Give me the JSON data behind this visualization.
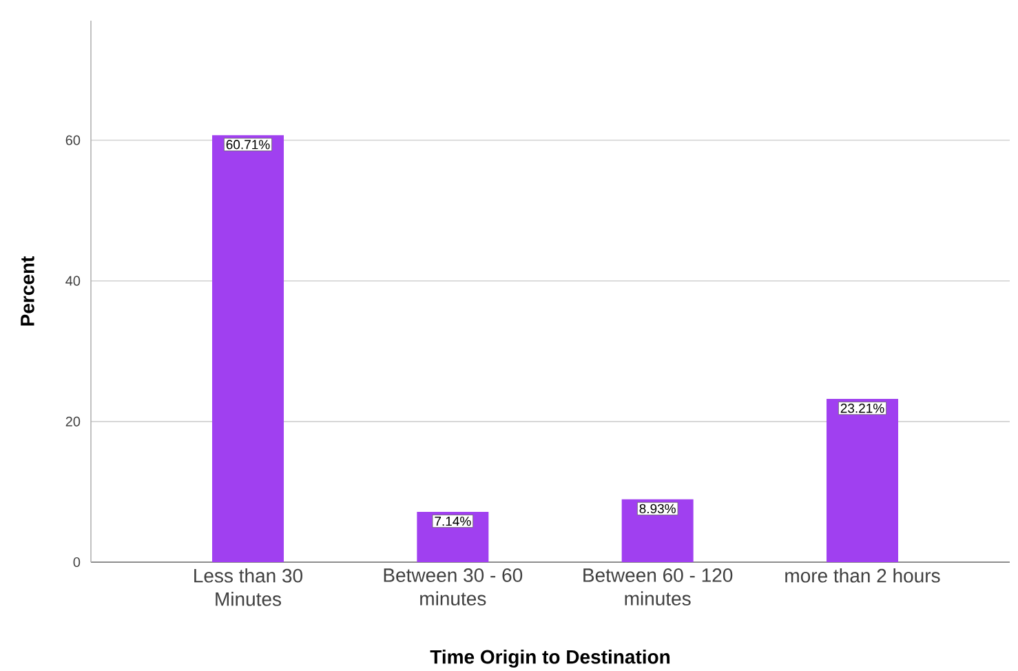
{
  "chart_data": {
    "type": "bar",
    "xlabel": "Time Origin to Destination",
    "ylabel": "Percent",
    "categories": [
      "Less than 30 Minutes",
      "Between 30 - 60 minutes",
      "Between 60 - 120 minutes",
      "more than 2 hours"
    ],
    "values": [
      60.71,
      7.14,
      8.93,
      23.21
    ],
    "value_labels": [
      "60.71%",
      "7.14%",
      "8.93%",
      "23.21%"
    ],
    "color": "#a040f0",
    "ylim": [
      0,
      77
    ],
    "yticks": [
      0,
      20,
      40,
      60
    ],
    "grid": "y"
  }
}
